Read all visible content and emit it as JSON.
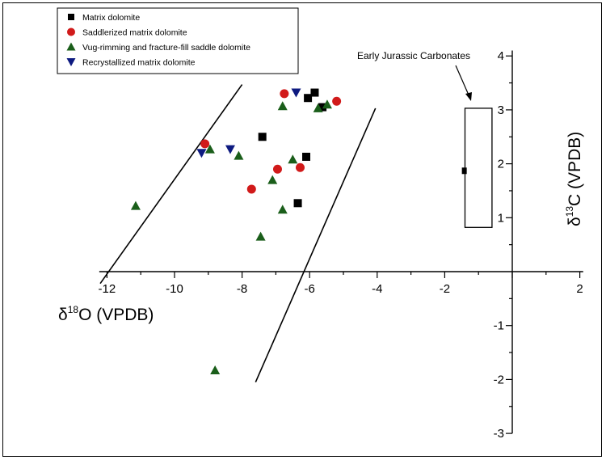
{
  "chart_data": {
    "type": "scatter",
    "xlabel": "δ18O (VPDB)",
    "ylabel": "δ13C (VPDB)",
    "xlabel_parts": {
      "delta": "δ",
      "sup": "18",
      "rest": "O (VPDB)"
    },
    "ylabel_parts": {
      "delta": "δ",
      "sup": "13",
      "rest": "C (VPDB)"
    },
    "xlim": [
      -12.3,
      2.1
    ],
    "ylim": [
      -3.0,
      4.1
    ],
    "x_ticks": [
      {
        "value": -12,
        "label": "-12"
      },
      {
        "value": -10,
        "label": "-10"
      },
      {
        "value": -8,
        "label": "-8"
      },
      {
        "value": -6,
        "label": "-6"
      },
      {
        "value": -4,
        "label": "-4"
      },
      {
        "value": -2,
        "label": "-2"
      },
      {
        "value": 2,
        "label": "2"
      }
    ],
    "y_ticks": [
      {
        "value": -3,
        "label": "-3"
      },
      {
        "value": -2,
        "label": "-2"
      },
      {
        "value": -1,
        "label": "-1"
      },
      {
        "value": 1,
        "label": "1"
      },
      {
        "value": 2,
        "label": "2"
      },
      {
        "value": 3,
        "label": "3"
      },
      {
        "value": 4,
        "label": "4"
      }
    ],
    "legend_position": "top-left",
    "series": [
      {
        "name": "Matrix dolomite",
        "marker": "square",
        "color": "#000000",
        "points": [
          {
            "x": -7.4,
            "y": 2.5
          },
          {
            "x": -6.05,
            "y": 3.22
          },
          {
            "x": -5.85,
            "y": 3.32
          },
          {
            "x": -6.1,
            "y": 2.13
          },
          {
            "x": -6.35,
            "y": 1.27
          },
          {
            "x": -5.62,
            "y": 3.05
          }
        ]
      },
      {
        "name": "Saddlerized matrix dolomite",
        "marker": "circle",
        "color": "#d11a1a",
        "points": [
          {
            "x": -9.1,
            "y": 2.37
          },
          {
            "x": -7.72,
            "y": 1.53
          },
          {
            "x": -6.95,
            "y": 1.9
          },
          {
            "x": -6.28,
            "y": 1.93
          },
          {
            "x": -6.75,
            "y": 3.3
          },
          {
            "x": -5.2,
            "y": 3.16
          }
        ]
      },
      {
        "name": "Vug-rimming and fracture-fill saddle dolomite",
        "marker": "triangle-up",
        "color": "#1a5e1a",
        "points": [
          {
            "x": -11.15,
            "y": 1.22
          },
          {
            "x": -8.95,
            "y": 2.27
          },
          {
            "x": -8.1,
            "y": 2.15
          },
          {
            "x": -7.1,
            "y": 1.7
          },
          {
            "x": -6.5,
            "y": 2.08
          },
          {
            "x": -6.8,
            "y": 1.15
          },
          {
            "x": -7.45,
            "y": 0.65
          },
          {
            "x": -6.8,
            "y": 3.07
          },
          {
            "x": -5.75,
            "y": 3.03
          },
          {
            "x": -5.48,
            "y": 3.1
          },
          {
            "x": -8.8,
            "y": -1.83
          }
        ]
      },
      {
        "name": "Recrystallized matrix dolomite",
        "marker": "triangle-down",
        "color": "#0d1a80",
        "points": [
          {
            "x": -9.2,
            "y": 2.2
          },
          {
            "x": -8.35,
            "y": 2.27
          },
          {
            "x": -6.4,
            "y": 3.32
          }
        ]
      }
    ],
    "trend_lines": [
      {
        "from": {
          "x": -12.2,
          "y": -0.22
        },
        "to": {
          "x": -8.0,
          "y": 3.47
        }
      },
      {
        "from": {
          "x": -7.6,
          "y": -2.05
        },
        "to": {
          "x": -4.05,
          "y": 3.03
        }
      }
    ],
    "box": {
      "label": "Early Jurassic Carbonates",
      "x_range": [
        -1.4,
        -0.6
      ],
      "y_range": [
        0.82,
        3.03
      ],
      "marker": {
        "x": -1.42,
        "y": 1.87
      }
    }
  }
}
